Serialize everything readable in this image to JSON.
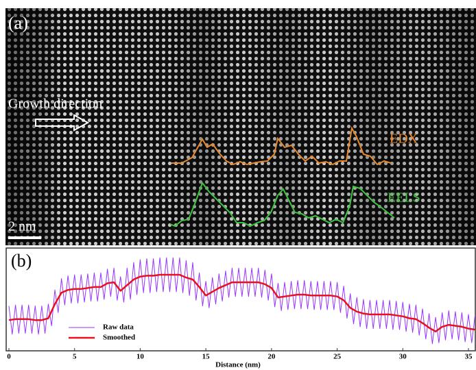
{
  "panel_a": {
    "label": "(a)",
    "arrow_text": "Growth direction",
    "edx": "EDX",
    "eels": "EELS",
    "scale": "2 nm"
  },
  "chart_data": {
    "type": "line",
    "panel_label": "(b)",
    "x_label": "Distance (nm)",
    "xlim": [
      0,
      35.6
    ],
    "xticks": [
      0,
      5,
      10,
      15,
      20,
      25,
      30,
      35
    ],
    "ylim": [
      0,
      1
    ],
    "series": [
      {
        "name": "Raw data",
        "color": "#9933ff",
        "x": [
          0,
          0.25,
          0.5,
          0.75,
          1,
          1.25,
          1.5,
          1.75,
          2,
          2.25,
          2.5,
          2.75,
          3,
          3.25,
          3.5,
          3.75,
          4,
          4.25,
          4.5,
          4.75,
          5,
          5.25,
          5.5,
          5.75,
          6,
          6.25,
          6.5,
          6.75,
          7,
          7.25,
          7.5,
          7.75,
          8,
          8.25,
          8.5,
          8.75,
          9,
          9.25,
          9.5,
          9.75,
          10,
          10.25,
          10.5,
          10.75,
          11,
          11.25,
          11.5,
          11.75,
          12,
          12.25,
          12.5,
          12.75,
          13,
          13.25,
          13.5,
          13.75,
          14,
          14.25,
          14.5,
          14.75,
          15,
          15.25,
          15.5,
          15.75,
          16,
          16.25,
          16.5,
          16.75,
          17,
          17.25,
          17.5,
          17.75,
          18,
          18.25,
          18.5,
          18.75,
          19,
          19.25,
          19.5,
          19.75,
          20,
          20.25,
          20.5,
          20.75,
          21,
          21.25,
          21.5,
          21.75,
          22,
          22.25,
          22.5,
          22.75,
          23,
          23.25,
          23.5,
          23.75,
          24,
          24.25,
          24.5,
          24.75,
          25,
          25.25,
          25.5,
          25.75,
          26,
          26.25,
          26.5,
          26.75,
          27,
          27.25,
          27.5,
          27.75,
          28,
          28.25,
          28.5,
          28.75,
          29,
          29.25,
          29.5,
          29.75,
          30,
          30.25,
          30.5,
          30.75,
          31,
          31.25,
          31.5,
          31.75,
          32,
          32.25,
          32.5,
          32.75,
          33,
          33.25,
          33.5,
          33.75,
          34,
          34.25,
          34.5,
          34.75,
          35,
          35.25,
          35.5
        ],
        "values": [
          0.46,
          0.16,
          0.47,
          0.17,
          0.47,
          0.17,
          0.47,
          0.17,
          0.46,
          0.16,
          0.46,
          0.17,
          0.48,
          0.25,
          0.63,
          0.39,
          0.75,
          0.47,
          0.78,
          0.49,
          0.79,
          0.49,
          0.79,
          0.5,
          0.8,
          0.51,
          0.81,
          0.51,
          0.81,
          0.53,
          0.85,
          0.56,
          0.86,
          0.52,
          0.77,
          0.5,
          0.86,
          0.53,
          0.92,
          0.58,
          0.95,
          0.6,
          0.96,
          0.6,
          0.96,
          0.61,
          0.97,
          0.61,
          0.97,
          0.61,
          0.97,
          0.61,
          0.97,
          0.6,
          0.94,
          0.57,
          0.92,
          0.52,
          0.81,
          0.46,
          0.72,
          0.44,
          0.76,
          0.48,
          0.8,
          0.51,
          0.83,
          0.55,
          0.86,
          0.56,
          0.86,
          0.56,
          0.86,
          0.56,
          0.86,
          0.56,
          0.86,
          0.55,
          0.84,
          0.52,
          0.8,
          0.45,
          0.7,
          0.41,
          0.71,
          0.42,
          0.72,
          0.43,
          0.73,
          0.43,
          0.73,
          0.43,
          0.72,
          0.42,
          0.72,
          0.42,
          0.72,
          0.42,
          0.72,
          0.42,
          0.71,
          0.39,
          0.67,
          0.33,
          0.59,
          0.27,
          0.55,
          0.24,
          0.53,
          0.22,
          0.52,
          0.22,
          0.52,
          0.22,
          0.52,
          0.22,
          0.52,
          0.21,
          0.51,
          0.21,
          0.5,
          0.19,
          0.48,
          0.18,
          0.47,
          0.15,
          0.43,
          0.11,
          0.38,
          0.06,
          0.34,
          0.07,
          0.39,
          0.1,
          0.41,
          0.11,
          0.4,
          0.1,
          0.39,
          0.08,
          0.37,
          0.07,
          0.36
        ]
      },
      {
        "name": "Smoothed",
        "color": "#e8101c",
        "x": [
          0,
          0.5,
          1,
          1.5,
          2,
          2.5,
          3,
          3.5,
          4,
          4.5,
          5,
          5.5,
          6,
          6.5,
          7,
          7.5,
          8,
          8.5,
          9,
          9.5,
          10,
          10.5,
          11,
          11.5,
          12,
          12.5,
          13,
          13.5,
          14,
          14.5,
          15,
          15.5,
          16,
          16.5,
          17,
          17.5,
          18,
          18.5,
          19,
          19.5,
          20,
          20.5,
          21,
          21.5,
          22,
          22.5,
          23,
          23.5,
          24,
          24.5,
          25,
          25.5,
          26,
          26.5,
          27,
          27.5,
          28,
          28.5,
          29,
          29.5,
          30,
          30.5,
          31,
          31.5,
          32,
          32.5,
          33,
          33.5,
          34,
          34.5,
          35,
          35.5
        ],
        "values": [
          0.31,
          0.32,
          0.32,
          0.32,
          0.31,
          0.31,
          0.33,
          0.48,
          0.6,
          0.63,
          0.64,
          0.64,
          0.65,
          0.66,
          0.66,
          0.7,
          0.71,
          0.62,
          0.68,
          0.74,
          0.77,
          0.78,
          0.78,
          0.79,
          0.79,
          0.79,
          0.79,
          0.76,
          0.74,
          0.66,
          0.57,
          0.61,
          0.65,
          0.68,
          0.71,
          0.71,
          0.71,
          0.71,
          0.71,
          0.69,
          0.65,
          0.55,
          0.56,
          0.57,
          0.58,
          0.58,
          0.57,
          0.57,
          0.57,
          0.57,
          0.56,
          0.52,
          0.44,
          0.4,
          0.38,
          0.37,
          0.37,
          0.37,
          0.37,
          0.36,
          0.35,
          0.33,
          0.32,
          0.28,
          0.23,
          0.19,
          0.24,
          0.26,
          0.25,
          0.24,
          0.22,
          0.21
        ]
      }
    ]
  }
}
